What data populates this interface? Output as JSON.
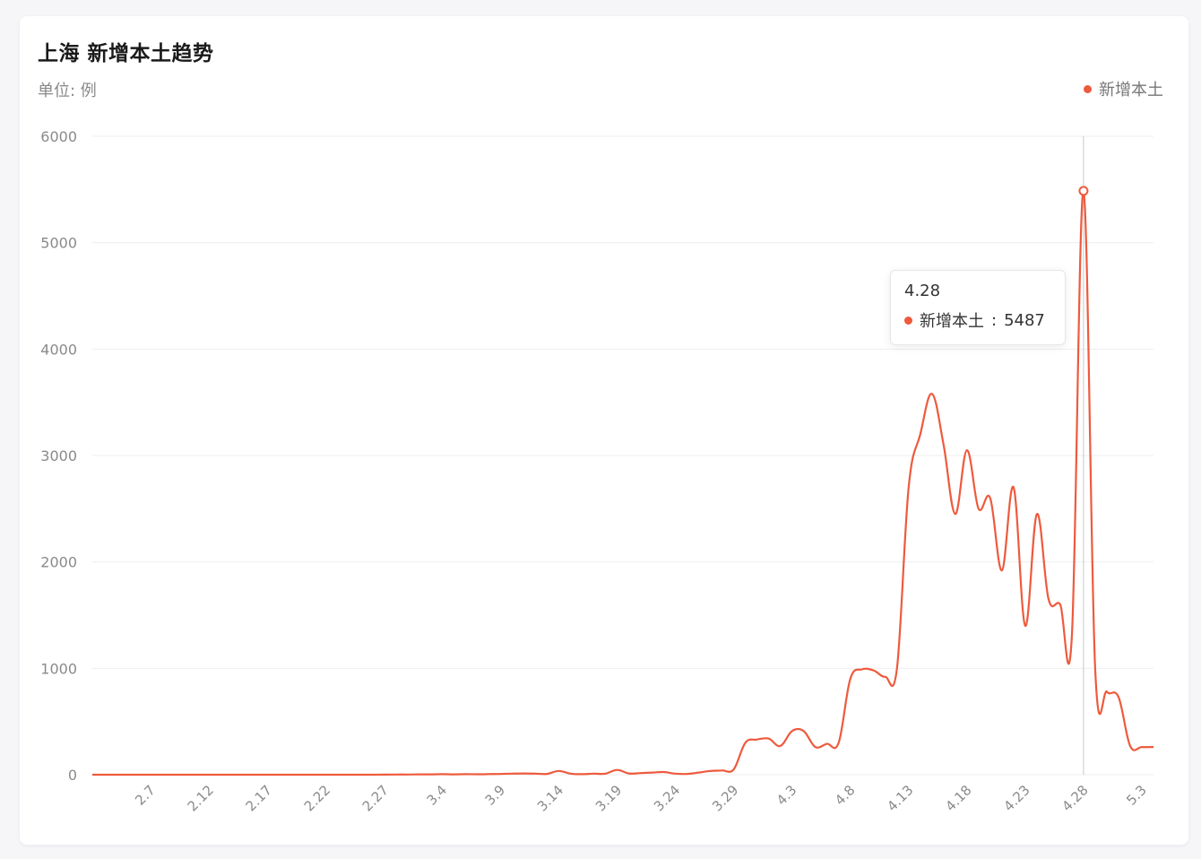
{
  "header": {
    "title": "上海 新增本土趋势",
    "unit": "单位: 例"
  },
  "legend": {
    "label": "新增本土"
  },
  "tooltip": {
    "date": "4.28",
    "series": "新增本土",
    "value": "5487"
  },
  "colors": {
    "line": "#ee5a3d",
    "grid": "#eeeeef",
    "axis_text": "#8a8a8a"
  },
  "chart_data": {
    "type": "line",
    "title": "上海 新增本土趋势",
    "ylabel": "单位: 例",
    "ylim": [
      0,
      6000
    ],
    "yticks": [
      0,
      1000,
      2000,
      3000,
      4000,
      5000,
      6000
    ],
    "xtick_labels": [
      "2.7",
      "2.12",
      "2.17",
      "2.22",
      "2.27",
      "3.4",
      "3.9",
      "3.14",
      "3.19",
      "3.24",
      "3.29",
      "4.3",
      "4.8",
      "4.13",
      "4.18",
      "4.23",
      "4.28",
      "5.3"
    ],
    "grid": true,
    "legend_position": "top-right",
    "series": [
      {
        "name": "新增本土",
        "x": [
          "2.2",
          "2.3",
          "2.4",
          "2.5",
          "2.6",
          "2.7",
          "2.8",
          "2.9",
          "2.10",
          "2.11",
          "2.12",
          "2.13",
          "2.14",
          "2.15",
          "2.16",
          "2.17",
          "2.18",
          "2.19",
          "2.20",
          "2.21",
          "2.22",
          "2.23",
          "2.24",
          "2.25",
          "2.26",
          "2.27",
          "2.28",
          "3.1",
          "3.2",
          "3.3",
          "3.4",
          "3.5",
          "3.6",
          "3.7",
          "3.8",
          "3.9",
          "3.10",
          "3.11",
          "3.12",
          "3.13",
          "3.14",
          "3.15",
          "3.16",
          "3.17",
          "3.18",
          "3.19",
          "3.20",
          "3.21",
          "3.22",
          "3.23",
          "3.24",
          "3.25",
          "3.26",
          "3.27",
          "3.28",
          "3.29",
          "3.30",
          "3.31",
          "4.1",
          "4.2",
          "4.3",
          "4.4",
          "4.5",
          "4.6",
          "4.7",
          "4.8",
          "4.9",
          "4.10",
          "4.11",
          "4.12",
          "4.13",
          "4.14",
          "4.15",
          "4.16",
          "4.17",
          "4.18",
          "4.19",
          "4.20",
          "4.21",
          "4.22",
          "4.23",
          "4.24",
          "4.25",
          "4.26",
          "4.27",
          "4.28",
          "4.29",
          "4.30",
          "5.1",
          "5.2",
          "5.3",
          "5.4"
        ],
        "values": [
          0,
          0,
          0,
          0,
          0,
          0,
          0,
          0,
          0,
          0,
          0,
          0,
          0,
          0,
          0,
          0,
          0,
          0,
          0,
          0,
          0,
          0,
          0,
          0,
          0,
          1,
          2,
          2,
          3,
          3,
          5,
          3,
          5,
          4,
          6,
          8,
          10,
          12,
          10,
          8,
          35,
          10,
          5,
          10,
          10,
          45,
          12,
          15,
          20,
          25,
          10,
          8,
          20,
          35,
          40,
          50,
          300,
          330,
          340,
          270,
          410,
          410,
          260,
          290,
          300,
          900,
          990,
          980,
          920,
          1000,
          2700,
          3200,
          3580,
          3100,
          2450,
          3050,
          2500,
          2600,
          1920,
          2700,
          1400,
          2450,
          1650,
          1600,
          1300,
          5487,
          1000,
          780,
          730,
          270,
          260,
          260
        ],
        "marked_point": {
          "x": "4.28",
          "y": 5487
        }
      }
    ]
  }
}
